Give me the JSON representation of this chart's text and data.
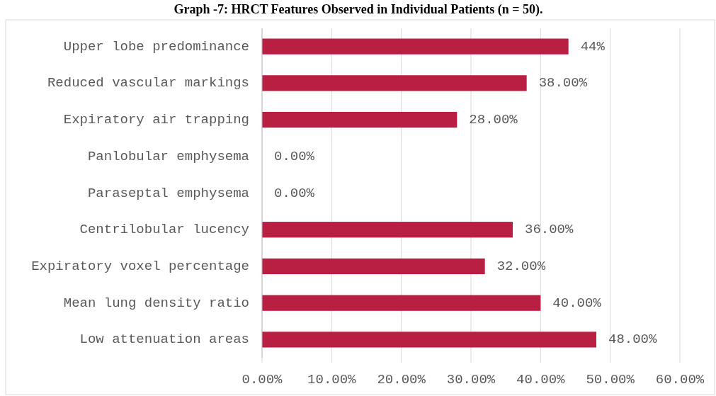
{
  "chart_data": {
    "type": "bar",
    "orientation": "horizontal",
    "title": "Graph -7: HRCT Features Observed in Individual Patients (n = 50).",
    "categories": [
      "Upper lobe predominance",
      "Reduced vascular markings",
      "Expiratory air trapping",
      "Panlobular emphysema",
      "Paraseptal emphysema",
      "Centrilobular lucency",
      "Expiratory voxel percentage",
      "Mean lung density ratio",
      "Low attenuation areas"
    ],
    "values": [
      44,
      38,
      28,
      0,
      0,
      36,
      32,
      40,
      48
    ],
    "value_labels": [
      "44%",
      "38.00%",
      "28.00%",
      "0.00%",
      "0.00%",
      "36.00%",
      "32.00%",
      "40.00%",
      "48.00%"
    ],
    "color": "#b91f42",
    "xlim": [
      0,
      60
    ],
    "xticks": [
      {
        "value": 0,
        "label": "0.00%"
      },
      {
        "value": 10,
        "label": "10.00%"
      },
      {
        "value": 20,
        "label": "20.00%"
      },
      {
        "value": 30,
        "label": "30.00%"
      },
      {
        "value": 40,
        "label": "40.00%"
      },
      {
        "value": 50,
        "label": "50.00%"
      },
      {
        "value": 60,
        "label": "60.00%"
      }
    ],
    "grid": "x"
  }
}
